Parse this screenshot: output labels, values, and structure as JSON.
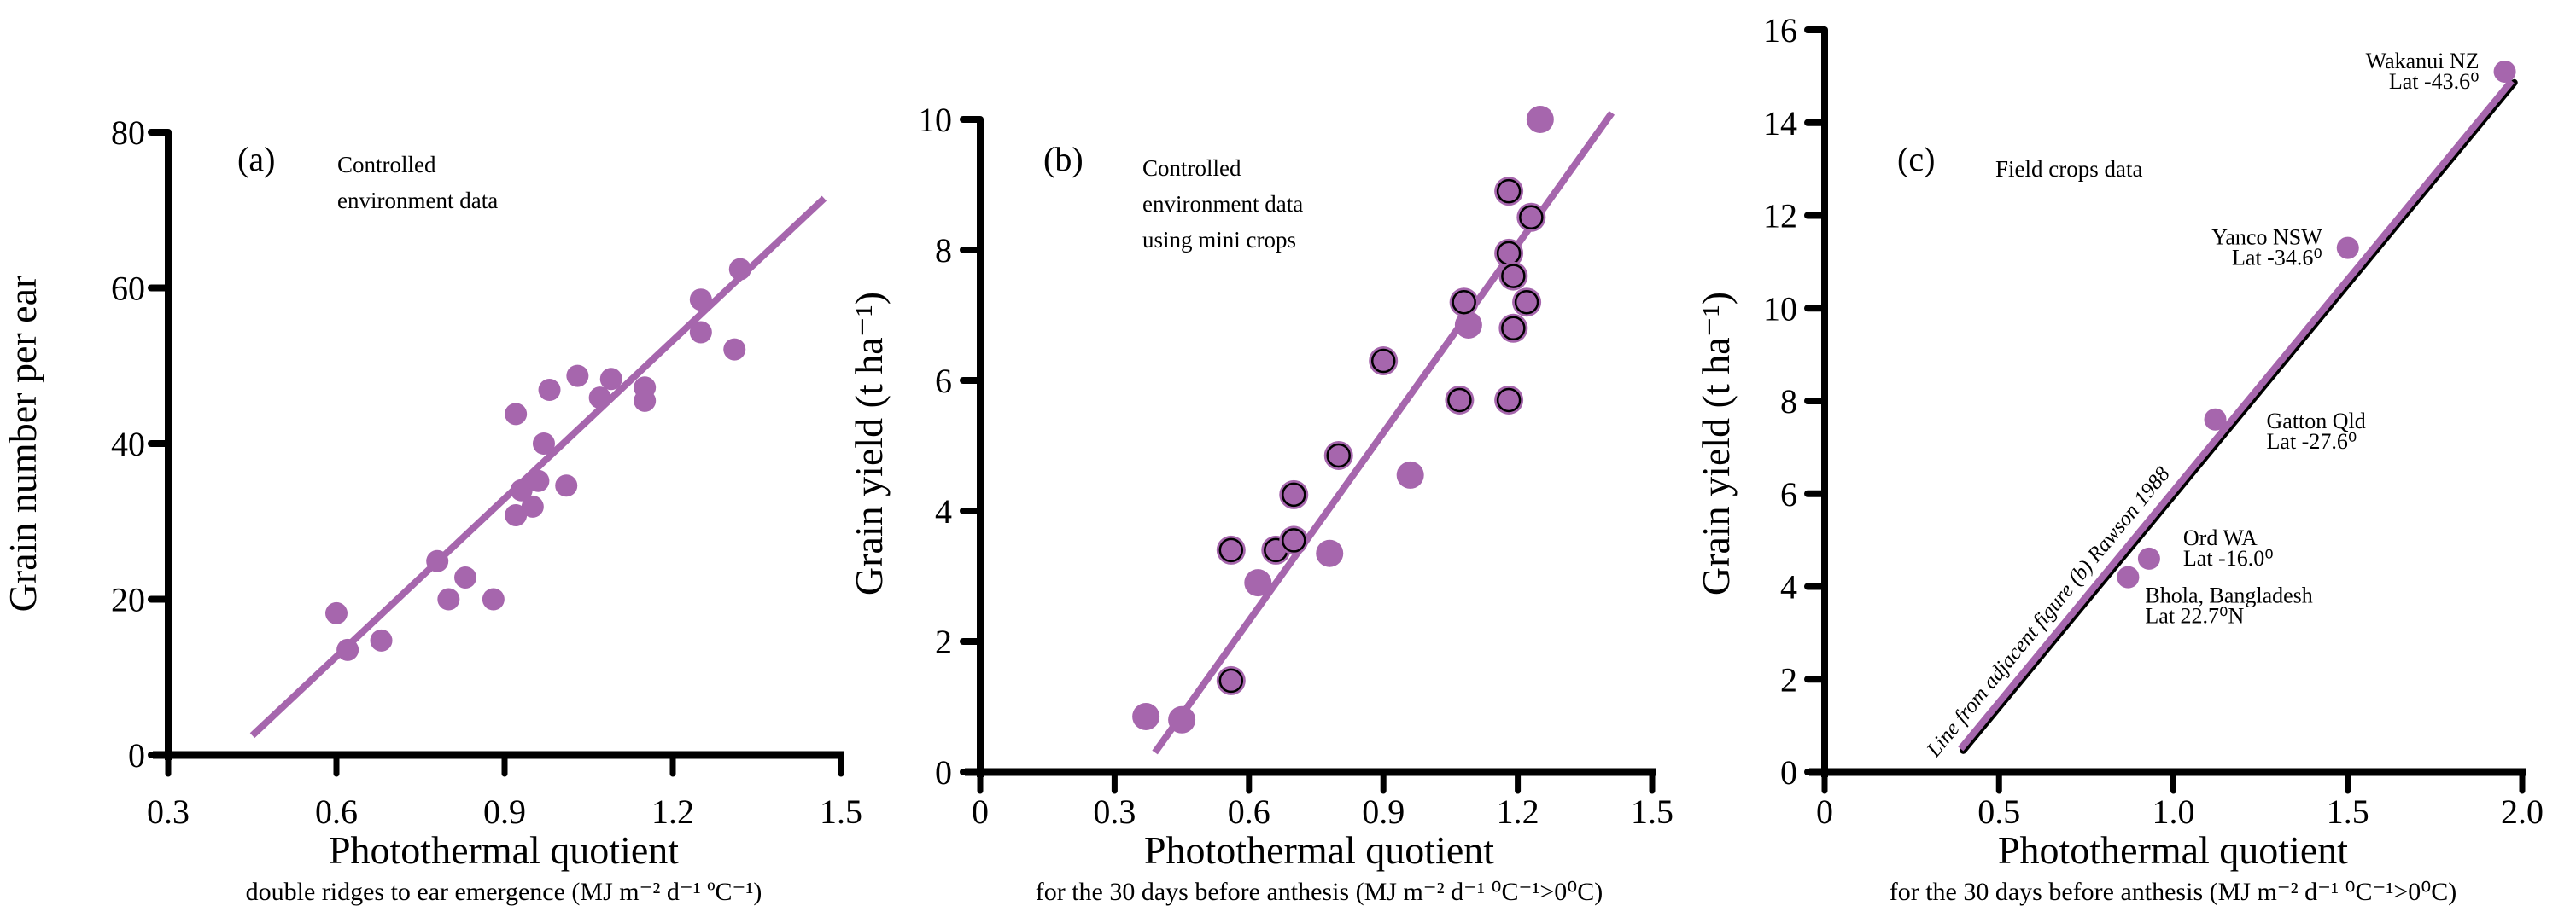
{
  "colors": {
    "accent": "#a666ad",
    "axis": "#000000",
    "outline": "#000000"
  },
  "chart_data": [
    {
      "id": "a",
      "type": "scatter",
      "panel_label": "(a)",
      "annotation": [
        "Controlled",
        "environment data"
      ],
      "xlabel": "Photothermal quotient",
      "xlabel_sub": "double ridges to ear emergence (MJ m⁻² d⁻¹ ºC⁻¹)",
      "ylabel": "Grain number per ear",
      "xlim": [
        0.3,
        1.5
      ],
      "ylim": [
        0,
        80
      ],
      "xticks": [
        0.3,
        0.6,
        0.9,
        1.2,
        1.5
      ],
      "xtick_labels": [
        "0.3",
        "0.6",
        "0.9",
        "1.2",
        "1.5"
      ],
      "yticks": [
        0,
        20,
        40,
        60,
        80
      ],
      "ytick_labels": [
        "0",
        "20",
        "40",
        "60",
        "80"
      ],
      "grid": false,
      "series": [
        {
          "name": "Controlled environment data",
          "marker": "filled",
          "points": [
            [
              0.6,
              18.2
            ],
            [
              0.62,
              13.5
            ],
            [
              0.68,
              14.7
            ],
            [
              0.78,
              24.9
            ],
            [
              0.8,
              20.0
            ],
            [
              0.83,
              22.8
            ],
            [
              0.88,
              20.0
            ],
            [
              0.92,
              30.8
            ],
            [
              0.93,
              34.0
            ],
            [
              0.95,
              31.9
            ],
            [
              0.96,
              35.2
            ],
            [
              0.97,
              40.0
            ],
            [
              0.98,
              46.9
            ],
            [
              0.92,
              43.8
            ],
            [
              1.01,
              34.6
            ],
            [
              1.03,
              48.7
            ],
            [
              1.07,
              45.9
            ],
            [
              1.09,
              48.3
            ],
            [
              1.15,
              47.2
            ],
            [
              1.15,
              45.5
            ],
            [
              1.25,
              58.5
            ],
            [
              1.25,
              54.3
            ],
            [
              1.31,
              52.1
            ],
            [
              1.32,
              62.4
            ]
          ]
        }
      ],
      "fit_line": [
        [
          0.45,
          2.5
        ],
        [
          1.47,
          71.5
        ]
      ]
    },
    {
      "id": "b",
      "type": "scatter",
      "panel_label": "(b)",
      "annotation": [
        "Controlled",
        "environment data",
        "using mini crops"
      ],
      "xlabel": "Photothermal quotient",
      "xlabel_sub": "for the 30 days before anthesis (MJ m⁻² d⁻¹ ⁰C⁻¹>0⁰C)",
      "ylabel": "Grain yield (t ha⁻¹)",
      "xlim": [
        0,
        1.5
      ],
      "ylim": [
        0,
        10
      ],
      "xticks": [
        0,
        0.3,
        0.6,
        0.9,
        1.2,
        1.5
      ],
      "xtick_labels": [
        "0",
        "0.3",
        "0.6",
        "0.9",
        "1.2",
        "1.5"
      ],
      "yticks": [
        0,
        2,
        4,
        6,
        8,
        10
      ],
      "ytick_labels": [
        "0",
        "2",
        "4",
        "6",
        "8",
        "10"
      ],
      "grid": false,
      "series": [
        {
          "name": "filled",
          "marker": "filled",
          "points": [
            [
              0.37,
              0.85
            ],
            [
              0.45,
              0.8
            ],
            [
              0.62,
              2.9
            ],
            [
              0.78,
              3.35
            ],
            [
              0.96,
              4.55
            ],
            [
              1.09,
              6.85
            ],
            [
              1.25,
              10.0
            ]
          ]
        },
        {
          "name": "outlined",
          "marker": "outlined",
          "points": [
            [
              0.56,
              1.4
            ],
            [
              0.56,
              3.4
            ],
            [
              0.66,
              3.4
            ],
            [
              0.7,
              3.55
            ],
            [
              0.7,
              4.25
            ],
            [
              0.8,
              4.85
            ],
            [
              0.9,
              6.3
            ],
            [
              1.07,
              5.7
            ],
            [
              1.18,
              5.7
            ],
            [
              1.08,
              7.2
            ],
            [
              1.19,
              6.8
            ],
            [
              1.22,
              7.2
            ],
            [
              1.18,
              7.95
            ],
            [
              1.19,
              7.6
            ],
            [
              1.18,
              8.9
            ],
            [
              1.23,
              8.5
            ]
          ]
        }
      ],
      "fit_line": [
        [
          0.39,
          0.3
        ],
        [
          1.41,
          10.1
        ]
      ]
    },
    {
      "id": "c",
      "type": "scatter",
      "panel_label": "(c)",
      "annotation": [
        "Field crops data"
      ],
      "xlabel": "Photothermal quotient",
      "xlabel_sub": "for the 30 days before anthesis (MJ m⁻² d⁻¹ ⁰C⁻¹>0⁰C)",
      "ylabel": "Grain yield (t ha⁻¹)",
      "xlim": [
        0,
        2.0
      ],
      "ylim": [
        0,
        16
      ],
      "xticks": [
        0,
        0.5,
        1.0,
        1.5,
        2.0
      ],
      "xtick_labels": [
        "0",
        "0.5",
        "1.0",
        "1.5",
        "2.0"
      ],
      "yticks": [
        0,
        2,
        4,
        6,
        8,
        10,
        12,
        14,
        16
      ],
      "ytick_labels": [
        "0",
        "2",
        "4",
        "6",
        "8",
        "10",
        "12",
        "14",
        "16"
      ],
      "grid": false,
      "series": [
        {
          "name": "Field crops data",
          "marker": "filled",
          "points": [
            {
              "x": 1.95,
              "y": 15.1,
              "site": "Wakanui NZ",
              "lat": "Lat -43.6⁰",
              "label_pos": "left"
            },
            {
              "x": 1.5,
              "y": 11.3,
              "site": "Yanco NSW",
              "lat": "Lat -34.6⁰",
              "label_pos": "left"
            },
            {
              "x": 1.12,
              "y": 7.6,
              "site": "Gatton Qld",
              "lat": "Lat -27.6⁰",
              "label_pos": "right-below"
            },
            {
              "x": 0.93,
              "y": 4.6,
              "site": "Ord WA",
              "lat": "Lat -16.0⁰",
              "label_pos": "right"
            },
            {
              "x": 0.87,
              "y": 4.2,
              "site": "Bhola, Bangladesh",
              "lat": "Lat 22.7⁰N",
              "label_pos": "right-below"
            }
          ]
        }
      ],
      "fit_line": [
        [
          0.39,
          0.5
        ],
        [
          1.97,
          14.9
        ]
      ],
      "line_annotation": "Line from adjacent figure (b) Rawson 1988"
    }
  ]
}
